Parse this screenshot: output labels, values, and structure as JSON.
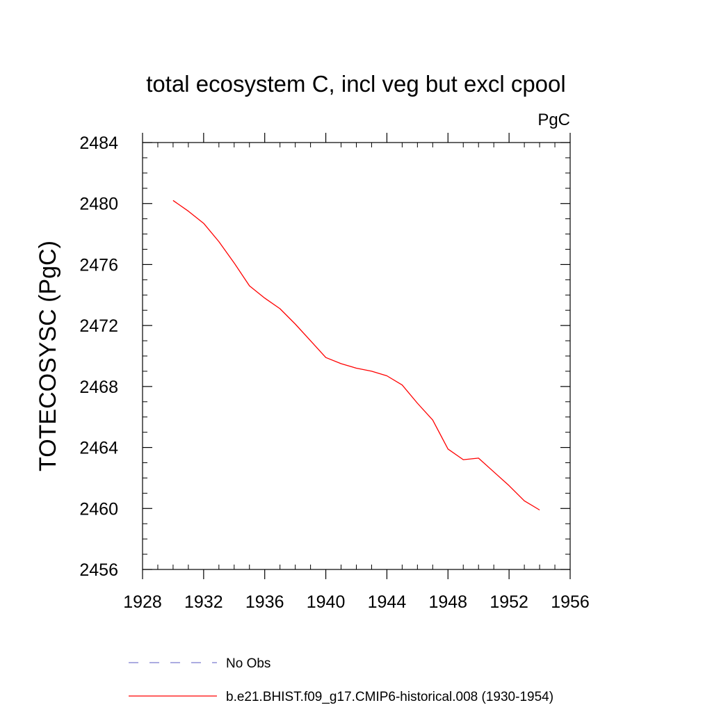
{
  "chart_data": {
    "type": "line",
    "title": "total ecosystem C, incl veg but excl cpool",
    "units_label": "PgC",
    "xlabel": "",
    "ylabel": "TOTECOSYSC  (PgC)",
    "xlim": [
      1928,
      1956
    ],
    "ylim": [
      2456,
      2484
    ],
    "x_ticks": [
      1928,
      1932,
      1936,
      1940,
      1944,
      1948,
      1952,
      1956
    ],
    "x_tick_labels": [
      "1928",
      "1932",
      "1936",
      "1940",
      "1944",
      "1948",
      "1952",
      "1956"
    ],
    "y_ticks": [
      2456,
      2460,
      2464,
      2468,
      2472,
      2476,
      2480,
      2484
    ],
    "y_tick_labels": [
      "2456",
      "2460",
      "2464",
      "2468",
      "2472",
      "2476",
      "2480",
      "2484"
    ],
    "grid": false,
    "legend_position": "bottom",
    "series": [
      {
        "name": "b.e21.BHIST.f09_g17.CMIP6-historical.008 (1930-1954)",
        "color": "#ff0000",
        "style": "solid",
        "x": [
          1930,
          1931,
          1932,
          1933,
          1934,
          1935,
          1936,
          1937,
          1938,
          1939,
          1940,
          1941,
          1942,
          1943,
          1944,
          1945,
          1946,
          1947,
          1948,
          1949,
          1950,
          1951,
          1952,
          1953,
          1954
        ],
        "y": [
          2480.2,
          2479.5,
          2478.7,
          2477.5,
          2476.1,
          2474.6,
          2473.8,
          2473.1,
          2472.1,
          2471.0,
          2469.9,
          2469.5,
          2469.2,
          2469.0,
          2468.7,
          2468.1,
          2466.9,
          2465.8,
          2463.9,
          2463.2,
          2463.3,
          2462.4,
          2461.5,
          2460.5,
          2459.9
        ]
      }
    ],
    "legend": [
      {
        "label": "No Obs",
        "color": "#7b7bcf",
        "style": "dashed"
      },
      {
        "label": "b.e21.BHIST.f09_g17.CMIP6-historical.008 (1930-1954)",
        "color": "#ff0000",
        "style": "solid"
      }
    ]
  }
}
